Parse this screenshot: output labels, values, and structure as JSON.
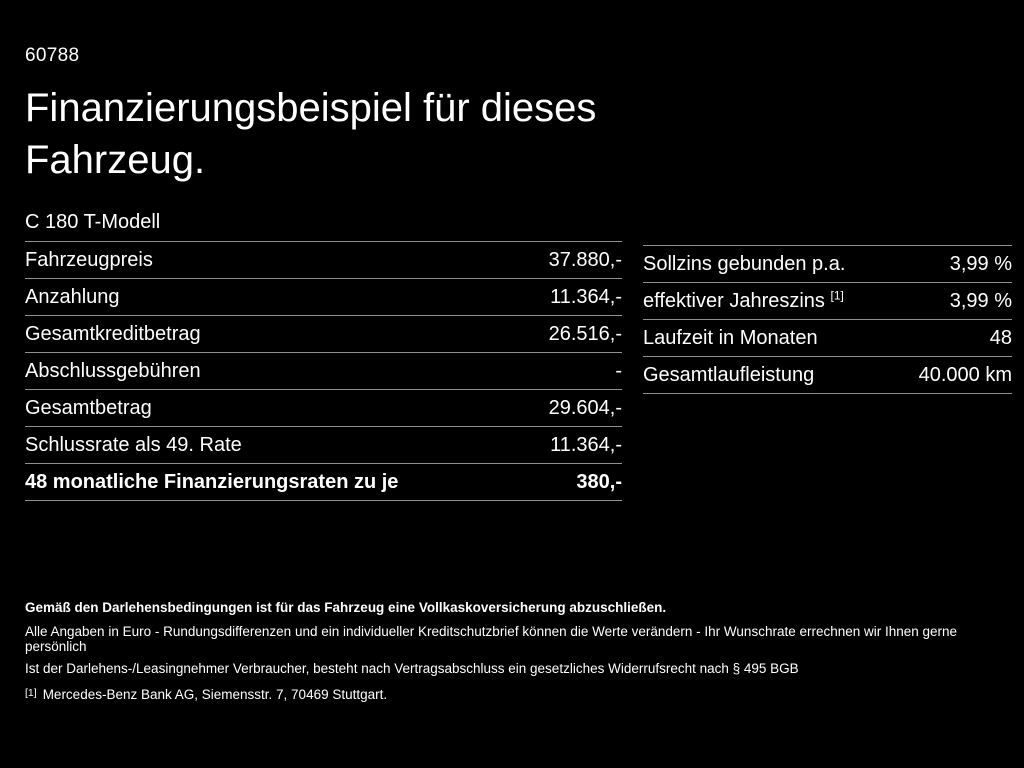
{
  "page": {
    "background_color": "#000000",
    "text_color": "#ffffff",
    "divider_color": "#909090",
    "doc_number": "60788",
    "title": "Finanzierungsbeispiel für dieses Fahrzeug.",
    "vehicle_model": "C 180 T-Modell"
  },
  "left_table": {
    "rows": [
      {
        "label": "Fahrzeugpreis",
        "value": "37.880,-"
      },
      {
        "label": "Anzahlung",
        "value": "11.364,-"
      },
      {
        "label": "Gesamtkreditbetrag",
        "value": "26.516,-"
      },
      {
        "label": "Abschlussgebühren",
        "value": "-"
      },
      {
        "label": "Gesamtbetrag",
        "value": "29.604,-"
      },
      {
        "label": "Schlussrate als 49. Rate",
        "value": "11.364,-"
      },
      {
        "label": "48 monatliche Finanzierungsraten zu je",
        "value": "380,-"
      }
    ]
  },
  "right_table": {
    "rows": [
      {
        "label": "Sollzins gebunden p.a.",
        "value": "3,99 %"
      },
      {
        "label": "effektiver Jahreszins",
        "sup": "[1]",
        "value": "3,99 %"
      },
      {
        "label": "Laufzeit in Monaten",
        "value": "48"
      },
      {
        "label": "Gesamtlaufleistung",
        "value": "40.000 km"
      }
    ]
  },
  "footer": {
    "insurance_note": "Gemäß den Darlehensbedingungen ist für das Fahrzeug eine Vollkaskoversicherung abzuschließen.",
    "disclaimer_1": "Alle Angaben in Euro - Rundungsdifferenzen und ein individueller Kreditschutzbrief können die Werte verändern - Ihr Wunschrate errechnen wir Ihnen gerne persönlich",
    "disclaimer_2": "Ist der Darlehens-/Leasingnehmer Verbraucher, besteht nach Vertragsabschluss ein gesetzliches Widerrufsrecht nach § 495 BGB",
    "footnote_marker": "[1]",
    "footnote_text": "Mercedes-Benz Bank AG, Siemensstr. 7, 70469 Stuttgart."
  }
}
